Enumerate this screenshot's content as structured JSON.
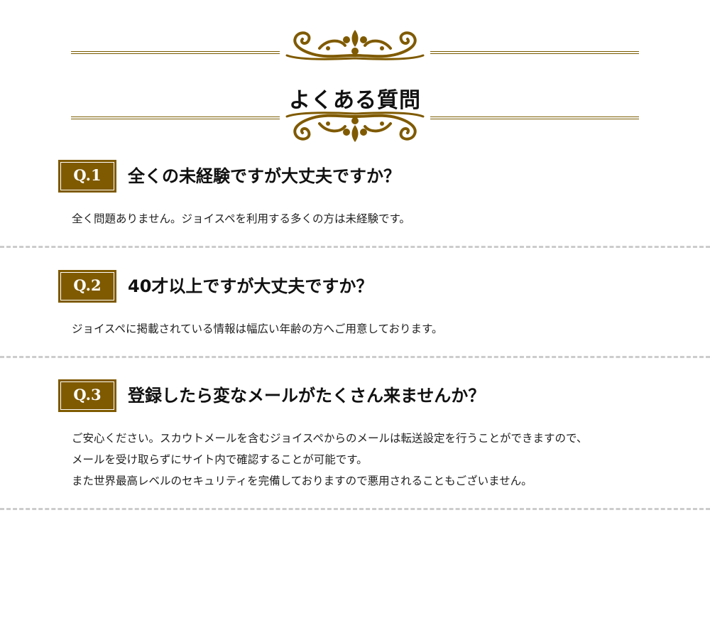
{
  "section": {
    "title": "よくある質問"
  },
  "faq": [
    {
      "badge": "Q.1",
      "question": "全くの未経験ですが大丈夫ですか？",
      "answer": [
        "全く問題ありません。ジョイスペを利用する多くの方は未経験です。"
      ]
    },
    {
      "badge": "Q.2",
      "question": "40才以上ですが大丈夫ですか？",
      "answer": [
        "ジョイスペに掲載されている情報は幅広い年齢の方へご用意しております。"
      ]
    },
    {
      "badge": "Q.3",
      "question": "登録したら変なメールがたくさん来ませんか？",
      "answer": [
        "ご安心ください。スカウトメールを含むジョイスペからのメールは転送設定を行うことができますので、",
        "メールを受け取らずにサイト内で確認することが可能です。",
        "また世界最高レベルのセキュリティを完備しておりますので悪用されることもございません。"
      ]
    }
  ],
  "colors": {
    "accent_gold": "#7f5a00",
    "divider": "#cccccc"
  },
  "icons": {
    "ornament": "baroque-flourish-icon"
  }
}
